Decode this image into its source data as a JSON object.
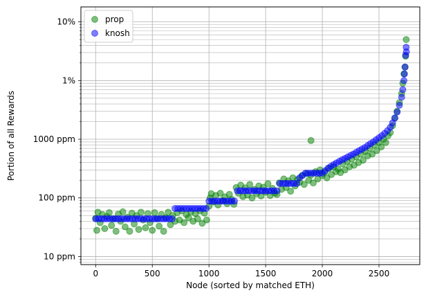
{
  "chart_data": {
    "type": "scatter",
    "xlabel": "Node (sorted by matched ETH)",
    "ylabel": "Portion of all Rewards",
    "xlim": [
      -130,
      2860
    ],
    "ylim": [
      7.3,
      180000
    ],
    "y_scale": "log",
    "y_unit": "ppm",
    "x_ticks": [
      0,
      500,
      1000,
      1500,
      2000,
      2500
    ],
    "y_ticks": [
      {
        "value": 10,
        "label": "10 ppm"
      },
      {
        "value": 100,
        "label": "100 ppm"
      },
      {
        "value": 1000,
        "label": "1000 ppm"
      },
      {
        "value": 10000,
        "label": "1%"
      },
      {
        "value": 100000,
        "label": "10%"
      }
    ],
    "grid": true,
    "legend_position": "top-left",
    "series": [
      {
        "name": "prop",
        "color": "#008000",
        "alpha": 0.5,
        "points": [
          [
            0,
            45
          ],
          [
            10,
            28
          ],
          [
            20,
            57
          ],
          [
            40,
            38
          ],
          [
            60,
            52
          ],
          [
            80,
            30
          ],
          [
            100,
            48
          ],
          [
            120,
            56
          ],
          [
            140,
            34
          ],
          [
            160,
            44
          ],
          [
            180,
            27
          ],
          [
            200,
            53
          ],
          [
            220,
            40
          ],
          [
            240,
            58
          ],
          [
            260,
            32
          ],
          [
            280,
            47
          ],
          [
            300,
            27
          ],
          [
            320,
            55
          ],
          [
            340,
            36
          ],
          [
            360,
            50
          ],
          [
            380,
            29
          ],
          [
            400,
            57
          ],
          [
            420,
            42
          ],
          [
            440,
            31
          ],
          [
            460,
            54
          ],
          [
            480,
            38
          ],
          [
            500,
            28
          ],
          [
            520,
            56
          ],
          [
            540,
            44
          ],
          [
            560,
            33
          ],
          [
            580,
            52
          ],
          [
            600,
            27
          ],
          [
            620,
            46
          ],
          [
            640,
            57
          ],
          [
            660,
            35
          ],
          [
            680,
            50
          ],
          [
            700,
            40
          ],
          [
            720,
            56
          ],
          [
            740,
            42
          ],
          [
            760,
            60
          ],
          [
            780,
            38
          ],
          [
            800,
            52
          ],
          [
            820,
            46
          ],
          [
            840,
            58
          ],
          [
            860,
            40
          ],
          [
            880,
            54
          ],
          [
            900,
            44
          ],
          [
            920,
            60
          ],
          [
            940,
            37
          ],
          [
            960,
            55
          ],
          [
            980,
            42
          ],
          [
            1000,
            72
          ],
          [
            1010,
            100
          ],
          [
            1020,
            118
          ],
          [
            1040,
            85
          ],
          [
            1060,
            110
          ],
          [
            1080,
            76
          ],
          [
            1100,
            120
          ],
          [
            1120,
            90
          ],
          [
            1140,
            104
          ],
          [
            1160,
            80
          ],
          [
            1180,
            115
          ],
          [
            1200,
            95
          ],
          [
            1220,
            78
          ],
          [
            1240,
            150
          ],
          [
            1260,
            120
          ],
          [
            1280,
            165
          ],
          [
            1300,
            105
          ],
          [
            1320,
            148
          ],
          [
            1340,
            112
          ],
          [
            1360,
            170
          ],
          [
            1380,
            100
          ],
          [
            1400,
            140
          ],
          [
            1420,
            118
          ],
          [
            1440,
            160
          ],
          [
            1460,
            108
          ],
          [
            1480,
            152
          ],
          [
            1500,
            125
          ],
          [
            1520,
            175
          ],
          [
            1540,
            110
          ],
          [
            1560,
            145
          ],
          [
            1580,
            120
          ],
          [
            1600,
            115
          ],
          [
            1620,
            180
          ],
          [
            1640,
            140
          ],
          [
            1660,
            210
          ],
          [
            1680,
            150
          ],
          [
            1700,
            195
          ],
          [
            1720,
            130
          ],
          [
            1740,
            220
          ],
          [
            1760,
            160
          ],
          [
            1780,
            205
          ],
          [
            1800,
            185
          ],
          [
            1820,
            240
          ],
          [
            1840,
            170
          ],
          [
            1860,
            260
          ],
          [
            1880,
            200
          ],
          [
            1900,
            245
          ],
          [
            1920,
            180
          ],
          [
            1940,
            280
          ],
          [
            1960,
            210
          ],
          [
            1980,
            300
          ],
          [
            2000,
            240
          ],
          [
            2020,
            275
          ],
          [
            2040,
            220
          ],
          [
            2060,
            320
          ],
          [
            2080,
            250
          ],
          [
            2100,
            340
          ],
          [
            2120,
            280
          ],
          [
            2140,
            310
          ],
          [
            2160,
            270
          ],
          [
            2180,
            380
          ],
          [
            2200,
            300
          ],
          [
            2220,
            420
          ],
          [
            2240,
            340
          ],
          [
            2260,
            460
          ],
          [
            2280,
            360
          ],
          [
            2300,
            500
          ],
          [
            2320,
            400
          ],
          [
            2340,
            560
          ],
          [
            2360,
            440
          ],
          [
            2380,
            620
          ],
          [
            2400,
            520
          ],
          [
            2420,
            700
          ],
          [
            2440,
            560
          ],
          [
            2460,
            800
          ],
          [
            2480,
            640
          ],
          [
            2500,
            880
          ],
          [
            2520,
            740
          ],
          [
            2540,
            1000
          ],
          [
            2560,
            880
          ],
          [
            2580,
            1150
          ],
          [
            2600,
            1300
          ],
          [
            2620,
            1700
          ],
          [
            2640,
            2300
          ],
          [
            2660,
            3000
          ],
          [
            2680,
            4200
          ],
          [
            2700,
            6000
          ],
          [
            2710,
            9000
          ],
          [
            2720,
            13000
          ],
          [
            2730,
            17000
          ],
          [
            2735,
            26000
          ],
          [
            2740,
            50000
          ],
          [
            1900,
            950
          ]
        ]
      },
      {
        "name": "knosh",
        "color": "#0000ff",
        "alpha": 0.5,
        "points": [
          [
            0,
            44
          ],
          [
            25,
            44
          ],
          [
            50,
            44
          ],
          [
            75,
            44
          ],
          [
            100,
            44
          ],
          [
            125,
            44
          ],
          [
            150,
            44
          ],
          [
            175,
            44
          ],
          [
            200,
            44
          ],
          [
            225,
            44
          ],
          [
            250,
            44
          ],
          [
            275,
            44
          ],
          [
            300,
            44
          ],
          [
            325,
            44
          ],
          [
            350,
            44
          ],
          [
            375,
            44
          ],
          [
            400,
            44
          ],
          [
            425,
            44
          ],
          [
            450,
            44
          ],
          [
            475,
            44
          ],
          [
            500,
            44
          ],
          [
            525,
            44
          ],
          [
            550,
            44
          ],
          [
            575,
            44
          ],
          [
            600,
            44
          ],
          [
            625,
            44
          ],
          [
            650,
            44
          ],
          [
            675,
            44
          ],
          [
            700,
            66
          ],
          [
            725,
            66
          ],
          [
            750,
            66
          ],
          [
            775,
            66
          ],
          [
            800,
            66
          ],
          [
            825,
            66
          ],
          [
            850,
            66
          ],
          [
            875,
            66
          ],
          [
            900,
            66
          ],
          [
            925,
            66
          ],
          [
            950,
            66
          ],
          [
            975,
            66
          ],
          [
            1000,
            88
          ],
          [
            1025,
            88
          ],
          [
            1050,
            88
          ],
          [
            1075,
            88
          ],
          [
            1100,
            88
          ],
          [
            1125,
            88
          ],
          [
            1150,
            88
          ],
          [
            1175,
            88
          ],
          [
            1200,
            88
          ],
          [
            1225,
            88
          ],
          [
            1250,
            132
          ],
          [
            1275,
            132
          ],
          [
            1300,
            132
          ],
          [
            1325,
            132
          ],
          [
            1350,
            132
          ],
          [
            1375,
            132
          ],
          [
            1400,
            132
          ],
          [
            1425,
            132
          ],
          [
            1450,
            132
          ],
          [
            1475,
            132
          ],
          [
            1500,
            132
          ],
          [
            1525,
            132
          ],
          [
            1550,
            132
          ],
          [
            1575,
            132
          ],
          [
            1600,
            132
          ],
          [
            1625,
            176
          ],
          [
            1650,
            176
          ],
          [
            1675,
            176
          ],
          [
            1700,
            176
          ],
          [
            1725,
            176
          ],
          [
            1750,
            176
          ],
          [
            1775,
            176
          ],
          [
            1800,
            220
          ],
          [
            1825,
            240
          ],
          [
            1850,
            264
          ],
          [
            1875,
            264
          ],
          [
            1900,
            264
          ],
          [
            1925,
            264
          ],
          [
            1950,
            264
          ],
          [
            1975,
            264
          ],
          [
            2000,
            264
          ],
          [
            2025,
            290
          ],
          [
            2050,
            320
          ],
          [
            2075,
            345
          ],
          [
            2100,
            370
          ],
          [
            2125,
            395
          ],
          [
            2150,
            420
          ],
          [
            2175,
            445
          ],
          [
            2200,
            470
          ],
          [
            2225,
            500
          ],
          [
            2250,
            530
          ],
          [
            2275,
            560
          ],
          [
            2300,
            600
          ],
          [
            2325,
            640
          ],
          [
            2350,
            680
          ],
          [
            2375,
            720
          ],
          [
            2400,
            780
          ],
          [
            2425,
            840
          ],
          [
            2450,
            900
          ],
          [
            2475,
            980
          ],
          [
            2500,
            1060
          ],
          [
            2525,
            1150
          ],
          [
            2550,
            1260
          ],
          [
            2575,
            1400
          ],
          [
            2600,
            1600
          ],
          [
            2620,
            1900
          ],
          [
            2640,
            2300
          ],
          [
            2660,
            2900
          ],
          [
            2680,
            3800
          ],
          [
            2700,
            5200
          ],
          [
            2710,
            7000
          ],
          [
            2720,
            10000
          ],
          [
            2725,
            13000
          ],
          [
            2730,
            17000
          ],
          [
            2735,
            27000
          ],
          [
            2740,
            37000
          ],
          [
            2742,
            31000
          ]
        ]
      }
    ]
  }
}
